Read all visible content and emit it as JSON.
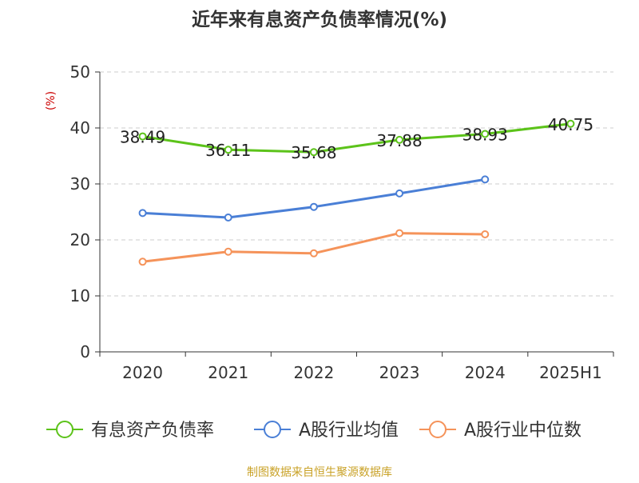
{
  "chart_data": {
    "type": "line",
    "title": "近年来有息资产负债率情况(%)",
    "ylabel": "(%)",
    "categories": [
      "2020",
      "2021",
      "2022",
      "2023",
      "2024",
      "2025H1"
    ],
    "yticks": [
      "0",
      "10",
      "20",
      "30",
      "40",
      "50"
    ],
    "ylim": [
      0,
      50
    ],
    "grid": true,
    "legend_position": "bottom",
    "series": [
      {
        "name": "有息资产负债率",
        "color": "#5cc31a",
        "values": [
          38.49,
          36.11,
          35.68,
          37.88,
          38.93,
          40.75
        ],
        "labels": [
          "38.49",
          "36.11",
          "35.68",
          "37.88",
          "38.93",
          "40.75"
        ]
      },
      {
        "name": "A股行业均值",
        "color": "#4a7fd6",
        "values": [
          24.8,
          24.0,
          25.9,
          28.3,
          30.8,
          null
        ]
      },
      {
        "name": "A股行业中位数",
        "color": "#f5935a",
        "values": [
          16.1,
          17.9,
          17.6,
          21.2,
          21.0,
          null
        ]
      }
    ],
    "source": "制图数据来自恒生聚源数据库"
  }
}
